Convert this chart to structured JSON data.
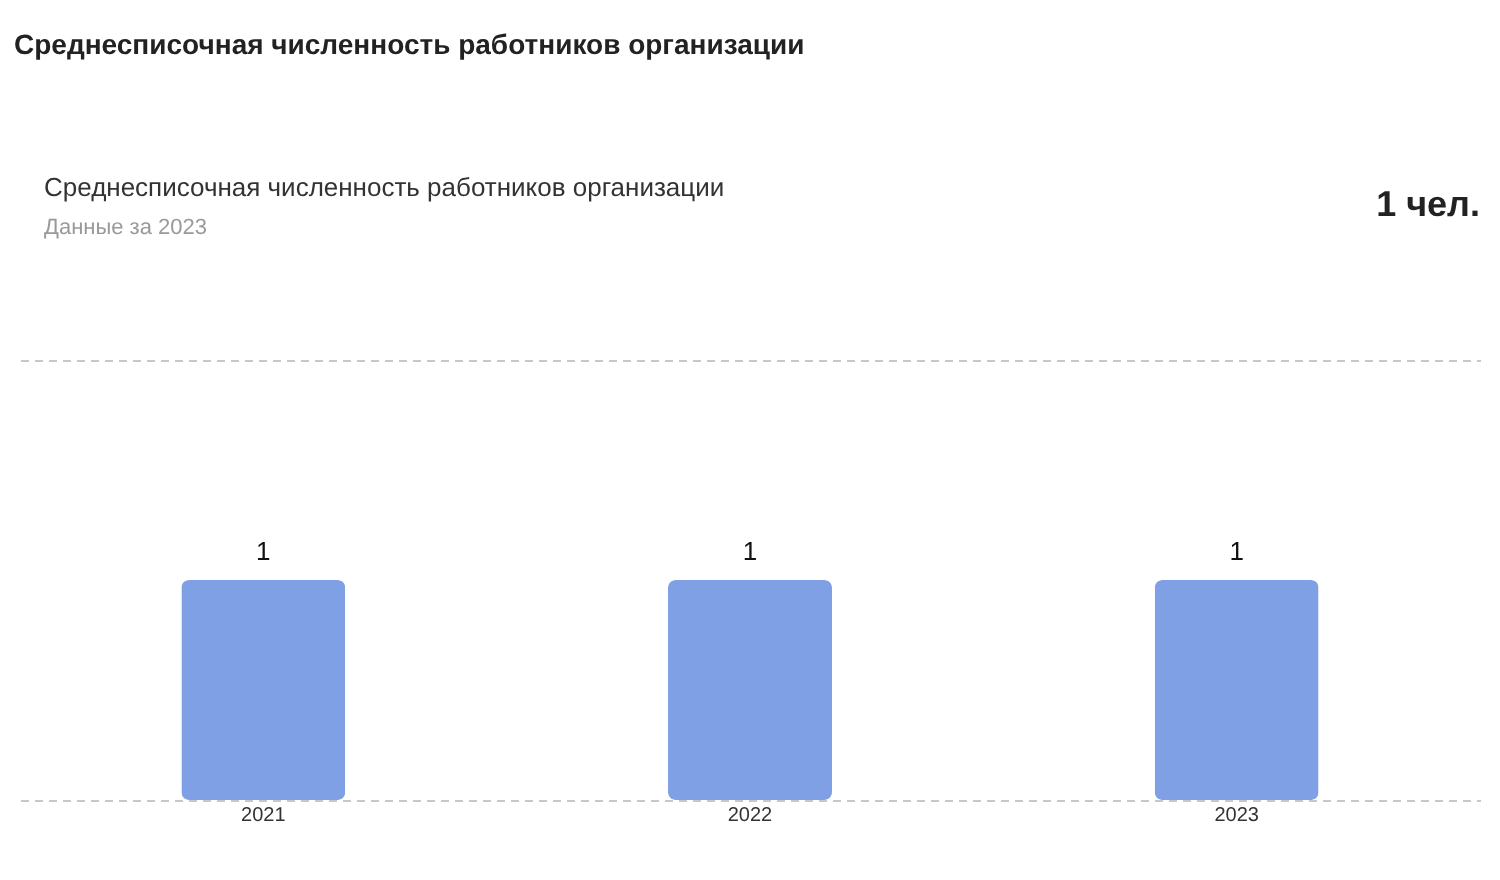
{
  "chart_data": {
    "type": "bar",
    "title": "Среднесписочная численность работников организации",
    "subtitle": "Среднесписочная численность работников организации",
    "annotations": [
      "Данные за 2023",
      "1 чел."
    ],
    "categories": [
      "2021",
      "2022",
      "2023"
    ],
    "values": [
      1,
      1,
      1
    ],
    "color": "#7fa0e4",
    "ylim": [
      0,
      2
    ],
    "yticks": [
      0,
      2
    ],
    "grid": "y",
    "tick_labels": "x",
    "data_labels": true
  }
}
